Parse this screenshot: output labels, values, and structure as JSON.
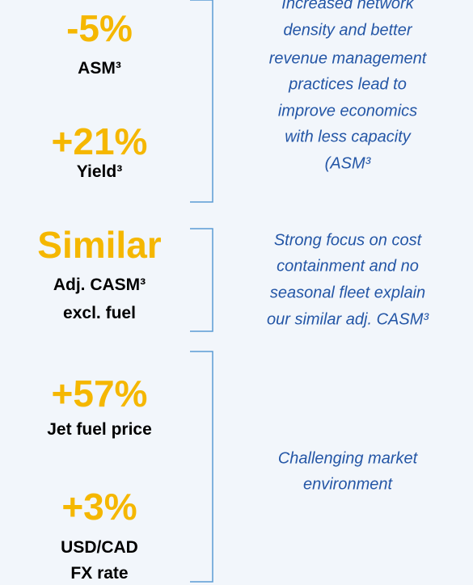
{
  "groups": [
    {
      "metrics": [
        {
          "value": "-5%",
          "label": [
            "ASM³"
          ]
        },
        {
          "value": "+21%",
          "label": [
            "Yield³"
          ]
        }
      ],
      "note": [
        "Increased network",
        "density and better",
        "revenue management",
        "practices lead to",
        "improve economics",
        "with less capacity",
        "(ASM³"
      ]
    },
    {
      "metrics": [
        {
          "value": "Similar",
          "label": [
            "Adj. CASM³",
            "excl. fuel"
          ]
        }
      ],
      "note": [
        "Strong focus on cost",
        "containment and no",
        "seasonal fleet explain",
        "our similar adj. CASM³"
      ]
    },
    {
      "metrics": [
        {
          "value": "+57%",
          "label": [
            "Jet fuel price"
          ]
        },
        {
          "value": "+3%",
          "label": [
            "USD/CAD",
            "FX rate"
          ]
        }
      ],
      "note": [
        "Challenging market",
        "environment"
      ]
    }
  ]
}
